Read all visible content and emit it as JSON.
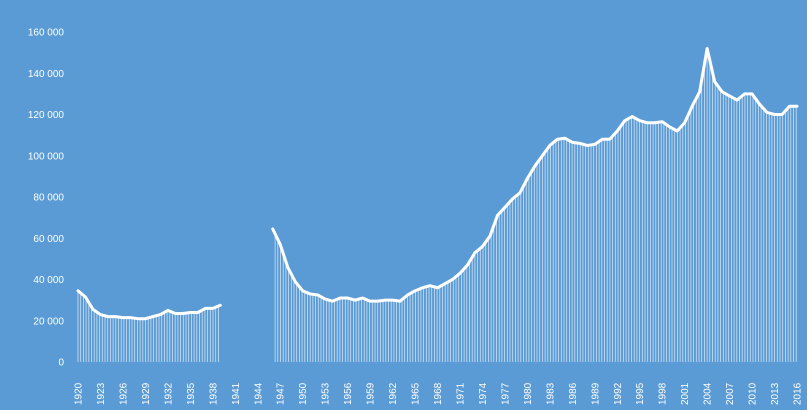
{
  "chart_data": {
    "type": "area",
    "title": "",
    "xlabel": "",
    "ylabel": "",
    "ylim": [
      0,
      160000
    ],
    "y_ticks": [
      0,
      20000,
      40000,
      60000,
      80000,
      100000,
      120000,
      140000,
      160000
    ],
    "y_tick_labels": [
      "0",
      "20 000",
      "40 000",
      "60 000",
      "80 000",
      "100 000",
      "120 000",
      "140 000",
      "160 000"
    ],
    "x_range": [
      1920,
      2016
    ],
    "x_tick_labels": [
      "1920",
      "1923",
      "1926",
      "1929",
      "1932",
      "1935",
      "1938",
      "1941",
      "1944",
      "1947",
      "1950",
      "1953",
      "1956",
      "1959",
      "1962",
      "1965",
      "1968",
      "1971",
      "1974",
      "1977",
      "1980",
      "1983",
      "1986",
      "1989",
      "1992",
      "1995",
      "1998",
      "2001",
      "2004",
      "2007",
      "2010",
      "2013",
      "2016"
    ],
    "grid": false,
    "legend": "none",
    "colors": {
      "background": "#5b9bd5",
      "line": "#ffffff",
      "fill_lines": "#ffffff",
      "text": "#ffffff"
    },
    "series": [
      {
        "x": [
          1920,
          1921,
          1922,
          1923,
          1924,
          1925,
          1926,
          1927,
          1928,
          1929,
          1930,
          1931,
          1932,
          1933,
          1934,
          1935,
          1936,
          1937,
          1938,
          1939,
          1940,
          1941,
          1942,
          1943,
          1944,
          1945,
          1946,
          1947,
          1948,
          1949,
          1950,
          1951,
          1952,
          1953,
          1954,
          1955,
          1956,
          1957,
          1958,
          1959,
          1960,
          1961,
          1962,
          1963,
          1964,
          1965,
          1966,
          1967,
          1968,
          1969,
          1970,
          1971,
          1972,
          1973,
          1974,
          1975,
          1976,
          1977,
          1978,
          1979,
          1980,
          1981,
          1982,
          1983,
          1984,
          1985,
          1986,
          1987,
          1988,
          1989,
          1990,
          1991,
          1992,
          1993,
          1994,
          1995,
          1996,
          1997,
          1998,
          1999,
          2000,
          2001,
          2002,
          2003,
          2004,
          2005,
          2006,
          2007,
          2008,
          2009,
          2010,
          2011,
          2012,
          2013,
          2014,
          2015,
          2016
        ],
        "values": [
          34500,
          31500,
          25500,
          23000,
          22000,
          22000,
          21500,
          21500,
          21000,
          21000,
          22000,
          23000,
          25000,
          23500,
          23500,
          24000,
          24000,
          26000,
          26000,
          27500,
          null,
          null,
          null,
          null,
          null,
          null,
          64500,
          57000,
          46000,
          39000,
          34500,
          33000,
          32500,
          30500,
          29500,
          31000,
          31000,
          30000,
          31000,
          29500,
          29500,
          30000,
          30000,
          29500,
          32500,
          34500,
          36000,
          37000,
          36000,
          38000,
          40000,
          43000,
          47000,
          53000,
          56000,
          61000,
          71000,
          75000,
          79000,
          82000,
          89000,
          95000,
          100000,
          105000,
          108000,
          108500,
          106500,
          106000,
          105000,
          105500,
          108000,
          108000,
          112000,
          117000,
          119000,
          117000,
          116000,
          116000,
          116500,
          114000,
          112000,
          116000,
          124000,
          131000,
          152000,
          136000,
          131000,
          129000,
          127000,
          130000,
          130000,
          125000,
          121000,
          120000,
          120000,
          124000,
          124000
        ]
      }
    ]
  }
}
